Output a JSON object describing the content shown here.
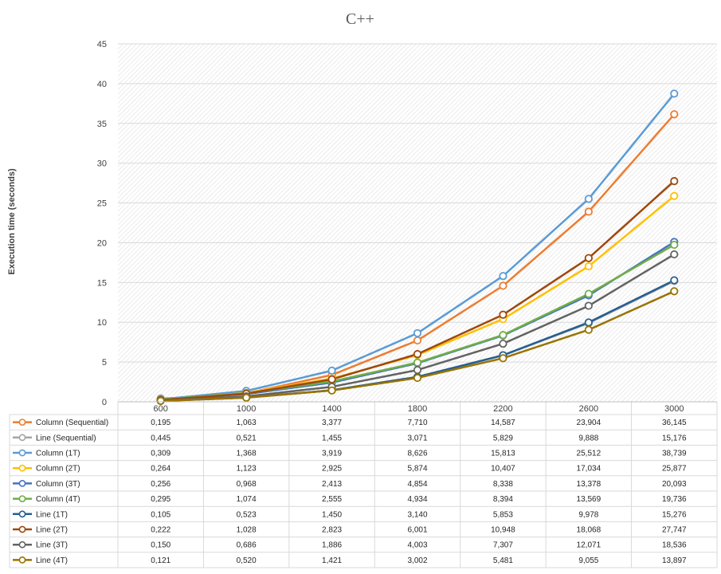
{
  "chart_data": {
    "type": "line",
    "title": "C++",
    "ylabel": "Execution time (seconds)",
    "xlabel": "",
    "ylim": [
      0,
      45
    ],
    "yticks": [
      0,
      5,
      10,
      15,
      20,
      25,
      30,
      35,
      40,
      45
    ],
    "grid": "horizontal",
    "legend": "data-table-left",
    "categories": [
      "600",
      "1000",
      "1400",
      "1800",
      "2200",
      "2600",
      "3000"
    ],
    "series": [
      {
        "name": "Column (Sequential)",
        "color": "#ED7D31",
        "values": [
          0.195,
          1.063,
          3.377,
          7.71,
          14.587,
          23.904,
          36.145
        ],
        "labels": [
          "0,195",
          "1,063",
          "3,377",
          "7,710",
          "14,587",
          "23,904",
          "36,145"
        ]
      },
      {
        "name": "Line (Sequential)",
        "color": "#A5A5A5",
        "values": [
          0.445,
          0.521,
          1.455,
          3.071,
          5.829,
          9.888,
          15.176
        ],
        "labels": [
          "0,445",
          "0,521",
          "1,455",
          "3,071",
          "5,829",
          "9,888",
          "15,176"
        ]
      },
      {
        "name": "Column (1T)",
        "color": "#5B9BD5",
        "values": [
          0.309,
          1.368,
          3.919,
          8.626,
          15.813,
          25.512,
          38.739
        ],
        "labels": [
          "0,309",
          "1,368",
          "3,919",
          "8,626",
          "15,813",
          "25,512",
          "38,739"
        ]
      },
      {
        "name": "Column (2T)",
        "color": "#FFC000",
        "values": [
          0.264,
          1.123,
          2.925,
          5.874,
          10.407,
          17.034,
          25.877
        ],
        "labels": [
          "0,264",
          "1,123",
          "2,925",
          "5,874",
          "10,407",
          "17,034",
          "25,877"
        ]
      },
      {
        "name": "Column (3T)",
        "color": "#4472C4",
        "values": [
          0.256,
          0.968,
          2.413,
          4.854,
          8.338,
          13.378,
          20.093
        ],
        "labels": [
          "0,256",
          "0,968",
          "2,413",
          "4,854",
          "8,338",
          "13,378",
          "20,093"
        ]
      },
      {
        "name": "Column (4T)",
        "color": "#70AD47",
        "values": [
          0.295,
          1.074,
          2.555,
          4.934,
          8.394,
          13.569,
          19.736
        ],
        "labels": [
          "0,295",
          "1,074",
          "2,555",
          "4,934",
          "8,394",
          "13,569",
          "19,736"
        ]
      },
      {
        "name": "Line (1T)",
        "color": "#255E91",
        "values": [
          0.105,
          0.523,
          1.45,
          3.14,
          5.853,
          9.978,
          15.276
        ],
        "labels": [
          "0,105",
          "0,523",
          "1,450",
          "3,140",
          "5,853",
          "9,978",
          "15,276"
        ]
      },
      {
        "name": "Line (2T)",
        "color": "#9E480E",
        "values": [
          0.222,
          1.028,
          2.823,
          6.001,
          10.948,
          18.068,
          27.747
        ],
        "labels": [
          "0,222",
          "1,028",
          "2,823",
          "6,001",
          "10,948",
          "18,068",
          "27,747"
        ]
      },
      {
        "name": "Line (3T)",
        "color": "#636363",
        "values": [
          0.15,
          0.686,
          1.886,
          4.003,
          7.307,
          12.071,
          18.536
        ],
        "labels": [
          "0,150",
          "0,686",
          "1,886",
          "4,003",
          "7,307",
          "12,071",
          "18,536"
        ]
      },
      {
        "name": "Line (4T)",
        "color": "#997300",
        "values": [
          0.121,
          0.52,
          1.421,
          3.002,
          5.481,
          9.055,
          13.897
        ],
        "labels": [
          "0,121",
          "0,520",
          "1,421",
          "3,002",
          "5,481",
          "9,055",
          "13,897"
        ]
      }
    ]
  }
}
